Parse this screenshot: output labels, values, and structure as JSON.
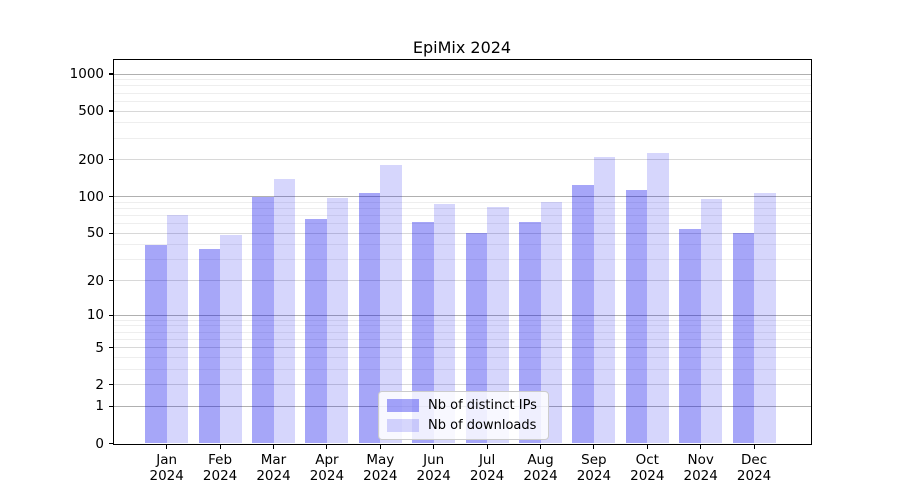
{
  "title": "EpiMix 2024",
  "chart_data": {
    "type": "bar",
    "title": "EpiMix 2024",
    "categories": [
      "Jan 2024",
      "Feb 2024",
      "Mar 2024",
      "Apr 2024",
      "May 2024",
      "Jun 2024",
      "Jul 2024",
      "Aug 2024",
      "Sep 2024",
      "Oct 2024",
      "Nov 2024",
      "Dec 2024"
    ],
    "series": [
      {
        "name": "Nb of distinct IPs",
        "color": "#0000eb",
        "alpha": 0.35,
        "values": [
          40,
          37,
          100,
          66,
          108,
          62,
          50,
          62,
          125,
          113,
          54,
          50
        ]
      },
      {
        "name": "Nb of downloads",
        "color": "#0000eb",
        "alpha": 0.16,
        "values": [
          71,
          48,
          140,
          98,
          181,
          87,
          82,
          91,
          212,
          227,
          96,
          107
        ]
      }
    ],
    "y_ticks": [
      0,
      1,
      2,
      5,
      10,
      20,
      50,
      100,
      200,
      500,
      1000
    ],
    "y_scale": "log1p",
    "ylim": [
      0,
      1180
    ],
    "grid": "both",
    "legend_position": "lower center",
    "grid_colors": {
      "decade": "#b0b0b0",
      "labeled_mid": "#d8d8d8",
      "minor": "#eeeeee"
    }
  }
}
